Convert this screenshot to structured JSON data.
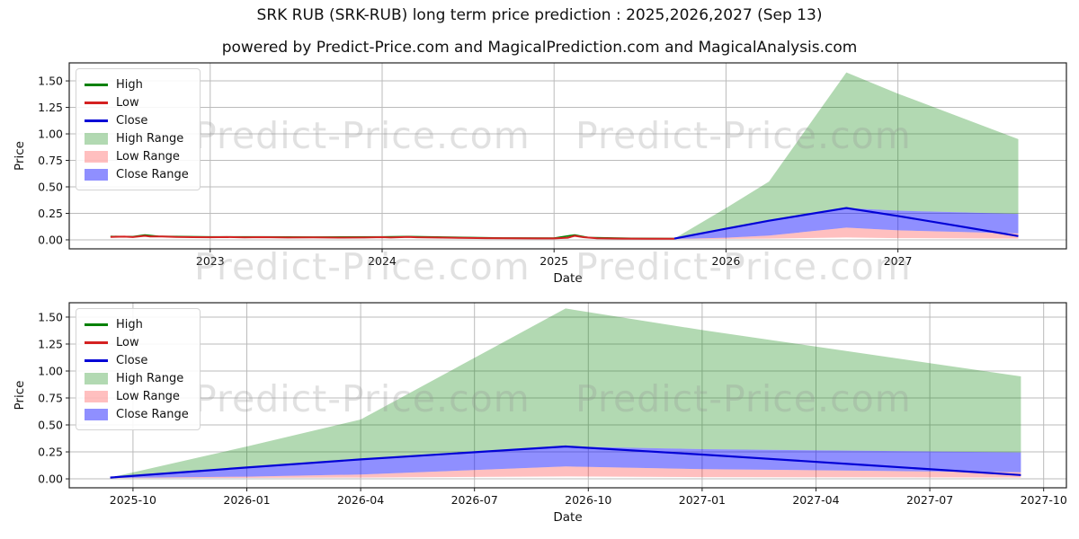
{
  "header": {
    "title": "SRK RUB (SRK-RUB) long term price prediction : 2025,2026,2027 (Sep 13)",
    "subtitle": "powered by Predict-Price.com and MagicalPrediction.com and MagicalAnalysis.com"
  },
  "watermark": {
    "text": "Predict-Price.com"
  },
  "colors": {
    "high_line": "#008000",
    "low_line": "#d42121",
    "close_line": "#0202d6",
    "high_range": "rgba(0,128,0,0.30)",
    "low_range": "rgba(255,0,0,0.25)",
    "close_range": "rgba(0,0,255,0.44)",
    "grid": "#bbbbbb",
    "spine": "#222222",
    "tick_text": "#111111"
  },
  "legend": {
    "position": "upper left",
    "items": [
      {
        "label": "High",
        "type": "line",
        "color_key": "high_line"
      },
      {
        "label": "Low",
        "type": "line",
        "color_key": "low_line"
      },
      {
        "label": "Close",
        "type": "line",
        "color_key": "close_line"
      },
      {
        "label": "High Range",
        "type": "patch",
        "color_key": "high_range"
      },
      {
        "label": "Low Range",
        "type": "patch",
        "color_key": "low_range"
      },
      {
        "label": "Close Range",
        "type": "patch",
        "color_key": "close_range"
      }
    ]
  },
  "chart_data": [
    {
      "type": "area",
      "name": "long-term-overview",
      "xlabel": "Date",
      "ylabel": "Price",
      "grid": true,
      "legend_position": "upper left",
      "xlim": [
        2022.18,
        2027.98
      ],
      "ylim": [
        -0.085,
        1.67
      ],
      "xticks": [
        {
          "v": 2023,
          "label": "2023"
        },
        {
          "v": 2024,
          "label": "2024"
        },
        {
          "v": 2025,
          "label": "2025"
        },
        {
          "v": 2026,
          "label": "2026"
        },
        {
          "v": 2027,
          "label": "2027"
        }
      ],
      "yticks": [
        {
          "v": 0.0,
          "label": "0.00"
        },
        {
          "v": 0.25,
          "label": "0.25"
        },
        {
          "v": 0.5,
          "label": "0.50"
        },
        {
          "v": 0.75,
          "label": "0.75"
        },
        {
          "v": 1.0,
          "label": "1.00"
        },
        {
          "v": 1.25,
          "label": "1.25"
        },
        {
          "v": 1.5,
          "label": "1.50"
        }
      ],
      "series": {
        "hist_high": [
          [
            2022.42,
            0.032
          ],
          [
            2022.55,
            0.03
          ],
          [
            2022.62,
            0.046
          ],
          [
            2022.7,
            0.034
          ],
          [
            2023.0,
            0.028
          ],
          [
            2023.3,
            0.028
          ],
          [
            2023.6,
            0.026
          ],
          [
            2024.0,
            0.028
          ],
          [
            2024.15,
            0.031
          ],
          [
            2024.4,
            0.024
          ],
          [
            2024.7,
            0.018
          ],
          [
            2025.0,
            0.016
          ],
          [
            2025.12,
            0.046
          ],
          [
            2025.2,
            0.022
          ],
          [
            2025.45,
            0.014
          ],
          [
            2025.7,
            0.012
          ]
        ],
        "hist_low": [
          [
            2022.42,
            0.028
          ],
          [
            2022.5,
            0.03
          ],
          [
            2022.55,
            0.026
          ],
          [
            2022.62,
            0.038
          ],
          [
            2022.65,
            0.031
          ],
          [
            2022.72,
            0.032
          ],
          [
            2022.8,
            0.027
          ],
          [
            2022.9,
            0.025
          ],
          [
            2023.0,
            0.024
          ],
          [
            2023.1,
            0.026
          ],
          [
            2023.2,
            0.023
          ],
          [
            2023.3,
            0.025
          ],
          [
            2023.45,
            0.022
          ],
          [
            2023.6,
            0.023
          ],
          [
            2023.75,
            0.021
          ],
          [
            2023.9,
            0.022
          ],
          [
            2024.0,
            0.025
          ],
          [
            2024.05,
            0.022
          ],
          [
            2024.15,
            0.028
          ],
          [
            2024.2,
            0.024
          ],
          [
            2024.3,
            0.022
          ],
          [
            2024.4,
            0.02
          ],
          [
            2024.5,
            0.018
          ],
          [
            2024.6,
            0.016
          ],
          [
            2024.75,
            0.014
          ],
          [
            2024.9,
            0.013
          ],
          [
            2025.0,
            0.013
          ],
          [
            2025.08,
            0.02
          ],
          [
            2025.12,
            0.038
          ],
          [
            2025.17,
            0.025
          ],
          [
            2025.25,
            0.014
          ],
          [
            2025.4,
            0.012
          ],
          [
            2025.55,
            0.011
          ],
          [
            2025.7,
            0.01
          ]
        ],
        "close": [
          [
            2025.7,
            0.012
          ],
          [
            2026.0,
            0.105
          ],
          [
            2026.25,
            0.18
          ],
          [
            2026.7,
            0.3
          ],
          [
            2027.0,
            0.225
          ],
          [
            2027.35,
            0.13
          ],
          [
            2027.7,
            0.035
          ]
        ],
        "high_top": [
          [
            2025.7,
            0.012
          ],
          [
            2026.0,
            0.3
          ],
          [
            2026.25,
            0.55
          ],
          [
            2026.7,
            1.58
          ],
          [
            2027.0,
            1.38
          ],
          [
            2027.7,
            0.95
          ]
        ],
        "close_upper": [
          [
            2025.7,
            0.012
          ],
          [
            2026.0,
            0.105
          ],
          [
            2026.25,
            0.18
          ],
          [
            2026.7,
            0.3
          ],
          [
            2027.0,
            0.275
          ],
          [
            2027.35,
            0.26
          ],
          [
            2027.7,
            0.245
          ]
        ],
        "close_lower": [
          [
            2025.7,
            0.008
          ],
          [
            2026.0,
            0.02
          ],
          [
            2026.25,
            0.04
          ],
          [
            2026.7,
            0.115
          ],
          [
            2027.0,
            0.09
          ],
          [
            2027.35,
            0.075
          ],
          [
            2027.7,
            0.06
          ]
        ],
        "low_bottom": [
          [
            2025.7,
            0.006
          ],
          [
            2026.25,
            0.012
          ],
          [
            2026.7,
            0.022
          ],
          [
            2027.0,
            0.016
          ],
          [
            2027.7,
            0.012
          ]
        ]
      },
      "bands": [
        {
          "upper": "high_top",
          "lower": "close_upper",
          "color_key": "high_range",
          "name": "high-range-band"
        },
        {
          "upper": "close_upper",
          "lower": "close_lower",
          "color_key": "close_range",
          "name": "close-range-band"
        },
        {
          "upper": "close_lower",
          "lower": "low_bottom",
          "color_key": "low_range",
          "name": "low-range-band"
        }
      ],
      "lines": [
        {
          "series": "hist_high",
          "color_key": "high_line",
          "width": 1.6,
          "name": "high-line"
        },
        {
          "series": "hist_low",
          "color_key": "low_line",
          "width": 2.0,
          "name": "low-line"
        },
        {
          "series": "close",
          "color_key": "close_line",
          "width": 2.2,
          "name": "close-line"
        }
      ]
    },
    {
      "type": "area",
      "name": "prediction-detail",
      "xlabel": "Date",
      "ylabel": "Price",
      "grid": true,
      "legend_position": "upper left",
      "xlim": [
        2025.61,
        2027.8
      ],
      "ylim": [
        -0.083,
        1.633
      ],
      "xticks": [
        {
          "v": 2025.75,
          "label": "2025-10"
        },
        {
          "v": 2026.0,
          "label": "2026-01"
        },
        {
          "v": 2026.25,
          "label": "2026-04"
        },
        {
          "v": 2026.5,
          "label": "2026-07"
        },
        {
          "v": 2026.75,
          "label": "2026-10"
        },
        {
          "v": 2027.0,
          "label": "2027-01"
        },
        {
          "v": 2027.25,
          "label": "2027-04"
        },
        {
          "v": 2027.5,
          "label": "2027-07"
        },
        {
          "v": 2027.75,
          "label": "2027-10"
        }
      ],
      "yticks": [
        {
          "v": 0.0,
          "label": "0.00"
        },
        {
          "v": 0.25,
          "label": "0.25"
        },
        {
          "v": 0.5,
          "label": "0.50"
        },
        {
          "v": 0.75,
          "label": "0.75"
        },
        {
          "v": 1.0,
          "label": "1.00"
        },
        {
          "v": 1.25,
          "label": "1.25"
        },
        {
          "v": 1.5,
          "label": "1.50"
        }
      ],
      "series": {
        "close": [
          [
            2025.7,
            0.012
          ],
          [
            2026.0,
            0.105
          ],
          [
            2026.25,
            0.18
          ],
          [
            2026.7,
            0.3
          ],
          [
            2027.0,
            0.225
          ],
          [
            2027.35,
            0.13
          ],
          [
            2027.7,
            0.035
          ]
        ],
        "high_top": [
          [
            2025.7,
            0.012
          ],
          [
            2026.0,
            0.3
          ],
          [
            2026.25,
            0.55
          ],
          [
            2026.7,
            1.58
          ],
          [
            2027.0,
            1.38
          ],
          [
            2027.7,
            0.95
          ]
        ],
        "close_upper": [
          [
            2025.7,
            0.012
          ],
          [
            2026.0,
            0.105
          ],
          [
            2026.25,
            0.18
          ],
          [
            2026.7,
            0.3
          ],
          [
            2027.0,
            0.275
          ],
          [
            2027.35,
            0.26
          ],
          [
            2027.7,
            0.245
          ]
        ],
        "close_lower": [
          [
            2025.7,
            0.008
          ],
          [
            2026.0,
            0.02
          ],
          [
            2026.25,
            0.04
          ],
          [
            2026.7,
            0.115
          ],
          [
            2027.0,
            0.09
          ],
          [
            2027.35,
            0.075
          ],
          [
            2027.7,
            0.06
          ]
        ],
        "low_bottom": [
          [
            2025.7,
            0.006
          ],
          [
            2026.25,
            0.012
          ],
          [
            2026.7,
            0.022
          ],
          [
            2027.0,
            0.016
          ],
          [
            2027.7,
            0.012
          ]
        ]
      },
      "bands": [
        {
          "upper": "high_top",
          "lower": "close_upper",
          "color_key": "high_range",
          "name": "high-range-band"
        },
        {
          "upper": "close_upper",
          "lower": "close_lower",
          "color_key": "close_range",
          "name": "close-range-band"
        },
        {
          "upper": "close_lower",
          "lower": "low_bottom",
          "color_key": "low_range",
          "name": "low-range-band"
        }
      ],
      "lines": [
        {
          "series": "close",
          "color_key": "close_line",
          "width": 2.2,
          "name": "close-line"
        }
      ]
    }
  ]
}
